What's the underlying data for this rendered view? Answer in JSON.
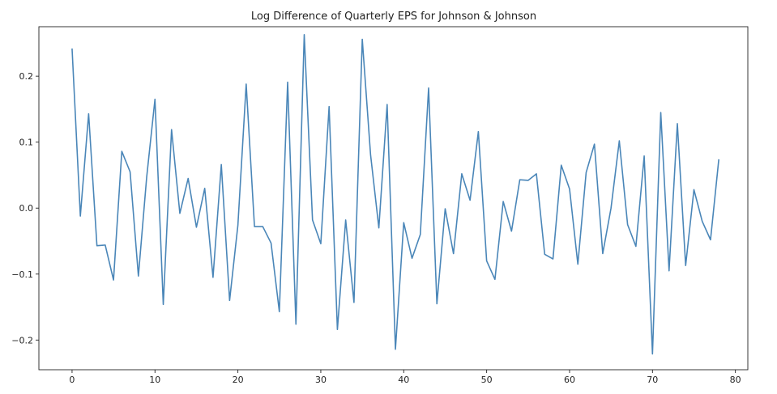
{
  "chart_data": {
    "type": "line",
    "title": "Log Difference of Quarterly EPS for Johnson & Johnson",
    "xlabel": "",
    "ylabel": "",
    "xlim": [
      -4,
      81.5
    ],
    "ylim": [
      -0.245,
      0.275
    ],
    "xticks": [
      0,
      10,
      20,
      30,
      40,
      50,
      60,
      70,
      80
    ],
    "xtick_labels": [
      "0",
      "10",
      "20",
      "30",
      "40",
      "50",
      "60",
      "70",
      "80"
    ],
    "yticks": [
      -0.2,
      -0.1,
      0.0,
      0.1,
      0.2
    ],
    "ytick_labels": [
      "−0.2",
      "−0.1",
      "0.0",
      "0.1",
      "0.2"
    ],
    "grid": false,
    "line_color": "#4a86b8",
    "series": [
      {
        "x": [
          0,
          1,
          2,
          3,
          4,
          5,
          6,
          7,
          8,
          9,
          10,
          11,
          12,
          13,
          14,
          15,
          16,
          17,
          18,
          19,
          20,
          21,
          22,
          23,
          24,
          25,
          26,
          27,
          28,
          29,
          30,
          31,
          32,
          33,
          34,
          35,
          36,
          37,
          38,
          39,
          40,
          41,
          42,
          43,
          44,
          45,
          46,
          47,
          48,
          49,
          50,
          51,
          52,
          53,
          54,
          55,
          56,
          57,
          58,
          59,
          60,
          61,
          62,
          63,
          64,
          65,
          66,
          67,
          68,
          69,
          70,
          71,
          72,
          73,
          74,
          75,
          76,
          77,
          78
        ],
        "values": [
          0.242,
          -0.012,
          0.143,
          -0.057,
          -0.056,
          -0.109,
          0.086,
          0.055,
          -0.103,
          0.047,
          0.165,
          -0.146,
          0.119,
          -0.008,
          0.045,
          -0.029,
          0.03,
          -0.105,
          0.066,
          -0.14,
          -0.026,
          0.188,
          -0.028,
          -0.028,
          -0.053,
          -0.157,
          0.191,
          -0.176,
          0.263,
          -0.018,
          -0.054,
          0.154,
          -0.184,
          -0.018,
          -0.143,
          0.256,
          0.081,
          -0.03,
          0.157,
          -0.214,
          -0.022,
          -0.076,
          -0.04,
          0.182,
          -0.145,
          -0.001,
          -0.069,
          0.052,
          0.012,
          0.116,
          -0.08,
          -0.108,
          0.01,
          -0.035,
          0.043,
          0.042,
          0.052,
          -0.07,
          -0.077,
          0.065,
          0.029,
          -0.085,
          0.054,
          0.097,
          -0.069,
          0.0,
          0.102,
          -0.025,
          -0.058,
          0.079,
          -0.221,
          0.145,
          -0.095,
          0.128,
          -0.087,
          0.028,
          -0.02,
          -0.048,
          0.074
        ]
      }
    ]
  }
}
